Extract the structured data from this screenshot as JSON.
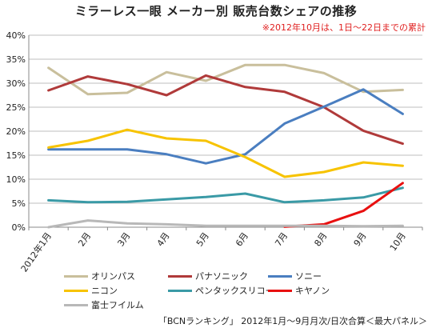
{
  "chart_data": {
    "type": "line",
    "title": "ミラーレス一眼 メーカー別 販売台数シェアの推移",
    "annotation": "※2012年10月は、1日～22日までの累計",
    "source": "「BCNランキング」 2012年1月～9月月次/日次合算＜最大パネル＞",
    "categories": [
      "2012年1月",
      "2月",
      "3月",
      "4月",
      "5月",
      "6月",
      "7月",
      "8月",
      "9月",
      "10月"
    ],
    "y_ticks": [
      "0%",
      "5%",
      "10%",
      "15%",
      "20%",
      "25%",
      "30%",
      "35%",
      "40%"
    ],
    "ylim": [
      0,
      40
    ],
    "grid": true,
    "legend_position": "bottom",
    "series": [
      {
        "name": "オリンパス",
        "color": "#c9bf9c",
        "values": [
          33.2,
          27.7,
          28.0,
          32.3,
          30.5,
          33.8,
          33.8,
          32.1,
          28.2,
          28.6
        ]
      },
      {
        "name": "パナソニック",
        "color": "#b03a3a",
        "values": [
          28.5,
          31.4,
          29.8,
          27.5,
          31.6,
          29.2,
          28.2,
          25.0,
          20.1,
          17.4
        ]
      },
      {
        "name": "ソニー",
        "color": "#4a7ec0",
        "values": [
          16.2,
          16.2,
          16.2,
          15.2,
          13.3,
          15.2,
          21.6,
          25.1,
          28.7,
          23.6
        ]
      },
      {
        "name": "ニコン",
        "color": "#f7c300",
        "values": [
          16.6,
          18.0,
          20.3,
          18.5,
          18.0,
          14.6,
          10.5,
          11.5,
          13.5,
          12.8
        ]
      },
      {
        "name": "ペンタックスリコー",
        "color": "#3a9aa6",
        "values": [
          5.6,
          5.2,
          5.3,
          5.8,
          6.3,
          7.0,
          5.2,
          5.6,
          6.2,
          8.2
        ]
      },
      {
        "name": "キヤノン",
        "color": "#e81010",
        "values": [
          null,
          null,
          null,
          null,
          null,
          null,
          0.1,
          0.6,
          3.4,
          9.2
        ]
      },
      {
        "name": "富士フイルム",
        "color": "#b8b8b8",
        "values": [
          0.0,
          1.4,
          0.8,
          0.6,
          0.3,
          0.3,
          0.3,
          0.3,
          0.2,
          0.3
        ]
      }
    ]
  }
}
